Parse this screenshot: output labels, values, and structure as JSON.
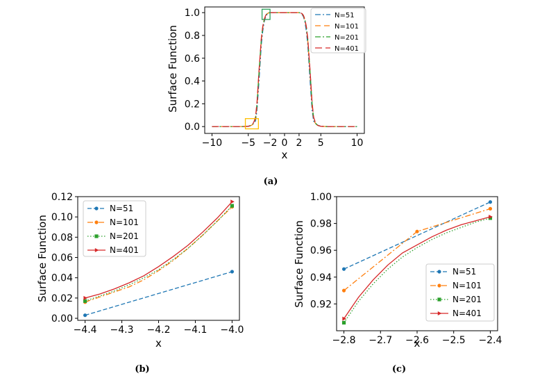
{
  "chart_data": [
    {
      "id": "a",
      "type": "line",
      "caption": "(a)",
      "xlabel": "x",
      "ylabel": "Surface Function",
      "xlim": [
        -11,
        11
      ],
      "ylim": [
        -0.06,
        1.05
      ],
      "xticks": [
        -10,
        -5,
        -2,
        0,
        2,
        5,
        10
      ],
      "xtick_labels": [
        "−10",
        "−5",
        "−2",
        "0",
        "2",
        "5",
        "10"
      ],
      "yticks": [
        0.0,
        0.2,
        0.4,
        0.6,
        0.8,
        1.0
      ],
      "ytick_labels": [
        "0.0",
        "0.2",
        "0.4",
        "0.6",
        "0.8",
        "1.0"
      ],
      "legend_loc": "upper right",
      "x": [
        -10,
        -6,
        -5,
        -4.6,
        -4.4,
        -4.2,
        -4.0,
        -3.8,
        -3.5,
        -3.2,
        -3.0,
        -2.8,
        -2.6,
        -2.4,
        -2.2,
        -2.0,
        0,
        2.0,
        2.2,
        2.4,
        2.6,
        2.8,
        3.0,
        3.2,
        3.5,
        3.8,
        4.0,
        4.2,
        4.4,
        4.6,
        5,
        6,
        10
      ],
      "series": [
        {
          "name": "N=51",
          "values": [
            0,
            0,
            0.003,
            0.012,
            0.02,
            0.03,
            0.05,
            0.14,
            0.42,
            0.72,
            0.84,
            0.92,
            0.965,
            0.985,
            0.995,
            1.0,
            1.0,
            1.0,
            0.995,
            0.985,
            0.965,
            0.92,
            0.84,
            0.72,
            0.42,
            0.14,
            0.05,
            0.03,
            0.02,
            0.012,
            0.003,
            0,
            0
          ]
        },
        {
          "name": "N=101",
          "values": [
            0,
            0,
            0.002,
            0.01,
            0.018,
            0.035,
            0.07,
            0.18,
            0.48,
            0.76,
            0.87,
            0.935,
            0.972,
            0.99,
            0.998,
            1.0,
            1.0,
            1.0,
            0.998,
            0.99,
            0.972,
            0.935,
            0.87,
            0.76,
            0.48,
            0.18,
            0.07,
            0.035,
            0.018,
            0.01,
            0.002,
            0,
            0
          ]
        },
        {
          "name": "N=201",
          "values": [
            0,
            0,
            0.002,
            0.01,
            0.02,
            0.04,
            0.08,
            0.2,
            0.5,
            0.77,
            0.875,
            0.94,
            0.975,
            0.992,
            0.998,
            1.0,
            1.0,
            1.0,
            0.998,
            0.992,
            0.975,
            0.94,
            0.875,
            0.77,
            0.5,
            0.2,
            0.08,
            0.04,
            0.02,
            0.01,
            0.002,
            0,
            0
          ]
        },
        {
          "name": "N=401",
          "values": [
            0,
            0,
            0.002,
            0.01,
            0.02,
            0.045,
            0.085,
            0.21,
            0.51,
            0.775,
            0.88,
            0.942,
            0.976,
            0.992,
            0.998,
            1.0,
            1.0,
            1.0,
            0.998,
            0.992,
            0.976,
            0.942,
            0.88,
            0.775,
            0.51,
            0.21,
            0.085,
            0.045,
            0.02,
            0.01,
            0.002,
            0,
            0
          ]
        }
      ],
      "annotations": [
        {
          "type": "zoom-box",
          "x_range": [
            -5.4,
            -3.6
          ],
          "y_range": [
            -0.02,
            0.07
          ],
          "color": "#ffbf00"
        },
        {
          "type": "zoom-box",
          "x_range": [
            -3.1,
            -2.0
          ],
          "y_range": [
            0.94,
            1.03
          ],
          "color": "#2ca05a"
        }
      ]
    },
    {
      "id": "b",
      "type": "line",
      "caption": "(b)",
      "xlabel": "x",
      "ylabel": "Surface Function",
      "xlim": [
        -4.42,
        -3.98
      ],
      "ylim": [
        -0.002,
        0.12
      ],
      "xticks": [
        -4.4,
        -4.3,
        -4.2,
        -4.1,
        -4.0
      ],
      "xtick_labels": [
        "−4.4",
        "−4.3",
        "−4.2",
        "−4.1",
        "−4.0"
      ],
      "yticks": [
        0.0,
        0.02,
        0.04,
        0.06,
        0.08,
        0.1,
        0.12
      ],
      "ytick_labels": [
        "0.00",
        "0.02",
        "0.04",
        "0.06",
        "0.08",
        "0.10",
        "0.12"
      ],
      "legend_loc": "upper left",
      "series": [
        {
          "name": "N=51",
          "x": [
            -4.4,
            -4.0
          ],
          "values": [
            0.003,
            0.046
          ]
        },
        {
          "name": "N=101",
          "x": [
            -4.4,
            -4.36,
            -4.32,
            -4.28,
            -4.24,
            -4.2,
            -4.16,
            -4.12,
            -4.08,
            -4.04,
            -4.0
          ],
          "values": [
            0.016,
            0.021,
            0.026,
            0.031,
            0.038,
            0.047,
            0.057,
            0.069,
            0.082,
            0.096,
            0.11
          ]
        },
        {
          "name": "N=201",
          "x": [
            -4.4,
            -4.36,
            -4.32,
            -4.28,
            -4.24,
            -4.2,
            -4.16,
            -4.12,
            -4.08,
            -4.04,
            -4.0
          ],
          "values": [
            0.017,
            0.022,
            0.027,
            0.033,
            0.04,
            0.048,
            0.058,
            0.069,
            0.082,
            0.096,
            0.111
          ]
        },
        {
          "name": "N=401",
          "x": [
            -4.4,
            -4.36,
            -4.32,
            -4.28,
            -4.24,
            -4.2,
            -4.16,
            -4.12,
            -4.08,
            -4.04,
            -4.0
          ],
          "values": [
            0.02,
            0.024,
            0.029,
            0.035,
            0.042,
            0.051,
            0.061,
            0.072,
            0.085,
            0.099,
            0.115
          ]
        }
      ]
    },
    {
      "id": "c",
      "type": "line",
      "caption": "(c)",
      "xlabel": "x",
      "ylabel": "Surface Function",
      "xlim": [
        -2.82,
        -2.38
      ],
      "ylim": [
        0.9,
        1.0
      ],
      "xticks": [
        -2.8,
        -2.7,
        -2.6,
        -2.5,
        -2.4
      ],
      "xtick_labels": [
        "−2.8",
        "−2.7",
        "−2.6",
        "−2.5",
        "−2.4"
      ],
      "yticks": [
        0.92,
        0.94,
        0.96,
        0.98,
        1.0
      ],
      "ytick_labels": [
        "0.92",
        "0.94",
        "0.96",
        "0.98",
        "1.00"
      ],
      "legend_loc": "lower right",
      "series": [
        {
          "name": "N=51",
          "x": [
            -2.8,
            -2.4
          ],
          "values": [
            0.946,
            0.996
          ]
        },
        {
          "name": "N=101",
          "x": [
            -2.8,
            -2.6,
            -2.4
          ],
          "values": [
            0.93,
            0.974,
            0.991
          ]
        },
        {
          "name": "N=201",
          "x": [
            -2.8,
            -2.76,
            -2.72,
            -2.68,
            -2.64,
            -2.6,
            -2.56,
            -2.52,
            -2.48,
            -2.44,
            -2.4
          ],
          "values": [
            0.906,
            0.922,
            0.935,
            0.946,
            0.955,
            0.962,
            0.968,
            0.973,
            0.977,
            0.981,
            0.984
          ]
        },
        {
          "name": "N=401",
          "x": [
            -2.8,
            -2.76,
            -2.72,
            -2.68,
            -2.64,
            -2.6,
            -2.56,
            -2.52,
            -2.48,
            -2.44,
            -2.4
          ],
          "values": [
            0.909,
            0.925,
            0.938,
            0.949,
            0.958,
            0.964,
            0.97,
            0.975,
            0.979,
            0.982,
            0.985
          ]
        }
      ]
    }
  ],
  "series_styles": [
    {
      "name": "N=51",
      "color": "#1f77b4",
      "dash": "6,3",
      "dash_a": "8,3,2,3",
      "marker": "circle"
    },
    {
      "name": "N=101",
      "color": "#ff7f0e",
      "dash": "8,3,2,3",
      "dash_a": "8,5",
      "marker": "circle"
    },
    {
      "name": "N=201",
      "color": "#2ca02c",
      "dash": "1.5,2.5",
      "dash_a": "8,3,2,3",
      "marker": "square"
    },
    {
      "name": "N=401",
      "color": "#d62728",
      "dash": "",
      "dash_a": "10,5",
      "marker": "triangle"
    }
  ]
}
